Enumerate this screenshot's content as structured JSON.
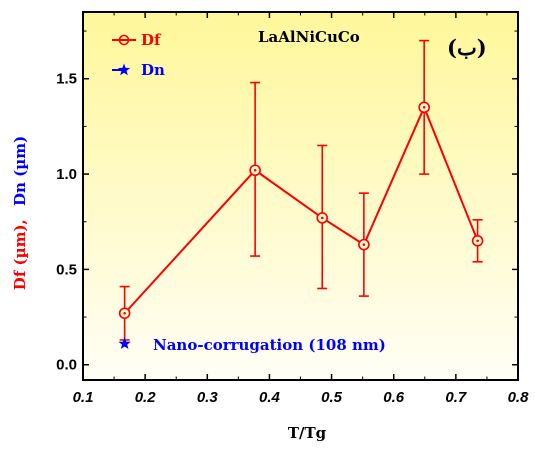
{
  "chart_data": {
    "type": "line",
    "title": "LaAlNiCuCo",
    "corner_label": "(ب)",
    "xlabel": "T/Tg",
    "ylabel_parts": [
      "Df (µm),",
      "Dn (µm)"
    ],
    "xlim": [
      0.1,
      0.8
    ],
    "ylim": [
      -0.08,
      1.85
    ],
    "xticks": [
      "0.1",
      "0.2",
      "0.3",
      "0.4",
      "0.5",
      "0.6",
      "0.7",
      "0.8"
    ],
    "yticks": [
      "0.0",
      "0.5",
      "1.0",
      "1.5"
    ],
    "series": [
      {
        "name": "Df",
        "color": "#ff0000",
        "marker": "circle-dot",
        "x": [
          0.167,
          0.377,
          0.485,
          0.552,
          0.649,
          0.735
        ],
        "y": [
          0.27,
          1.02,
          0.77,
          0.63,
          1.35,
          0.65
        ],
        "err_low": [
          0.14,
          0.45,
          0.37,
          0.27,
          0.35,
          0.11
        ],
        "err_high": [
          0.14,
          0.46,
          0.38,
          0.27,
          0.35,
          0.11
        ]
      },
      {
        "name": "Dn",
        "color": "#0000ff",
        "marker": "star",
        "x": [
          0.167
        ],
        "y": [
          0.11
        ]
      }
    ],
    "annotation": "Nano-corrugation (108 nm)",
    "background_gradient": [
      "#fff79a",
      "#fffef6"
    ]
  }
}
